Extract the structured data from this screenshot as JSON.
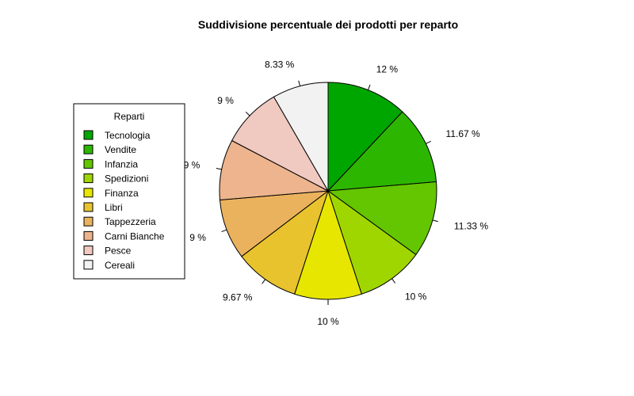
{
  "chart_data": {
    "type": "pie",
    "title": "Suddivisione percentuale dei prodotti per reparto",
    "legend_title": "Reparti",
    "legend_position": "left",
    "start": "top",
    "direction": "clockwise",
    "slices": [
      {
        "name": "Tecnologia",
        "value": 12,
        "label": "12 %",
        "color": "#00A600"
      },
      {
        "name": "Vendite",
        "value": 11.67,
        "label": "11.67 %",
        "color": "#2DB600"
      },
      {
        "name": "Infanzia",
        "value": 11.33,
        "label": "11.33 %",
        "color": "#63C600"
      },
      {
        "name": "Spedizioni",
        "value": 10,
        "label": "10 %",
        "color": "#A0D600"
      },
      {
        "name": "Finanza",
        "value": 10,
        "label": "10 %",
        "color": "#E6E600"
      },
      {
        "name": "Libri",
        "value": 9.67,
        "label": "9.67 %",
        "color": "#E8C32E"
      },
      {
        "name": "Tappezzeria",
        "value": 9,
        "label": "9 %",
        "color": "#EBB25E"
      },
      {
        "name": "Carni Bianche",
        "value": 9,
        "label": "9 %",
        "color": "#EDB48E"
      },
      {
        "name": "Pesce",
        "value": 9,
        "label": "9 %",
        "color": "#F0C9C0"
      },
      {
        "name": "Cereali",
        "value": 8.33,
        "label": "8.33 %",
        "color": "#F2F2F2"
      }
    ]
  }
}
